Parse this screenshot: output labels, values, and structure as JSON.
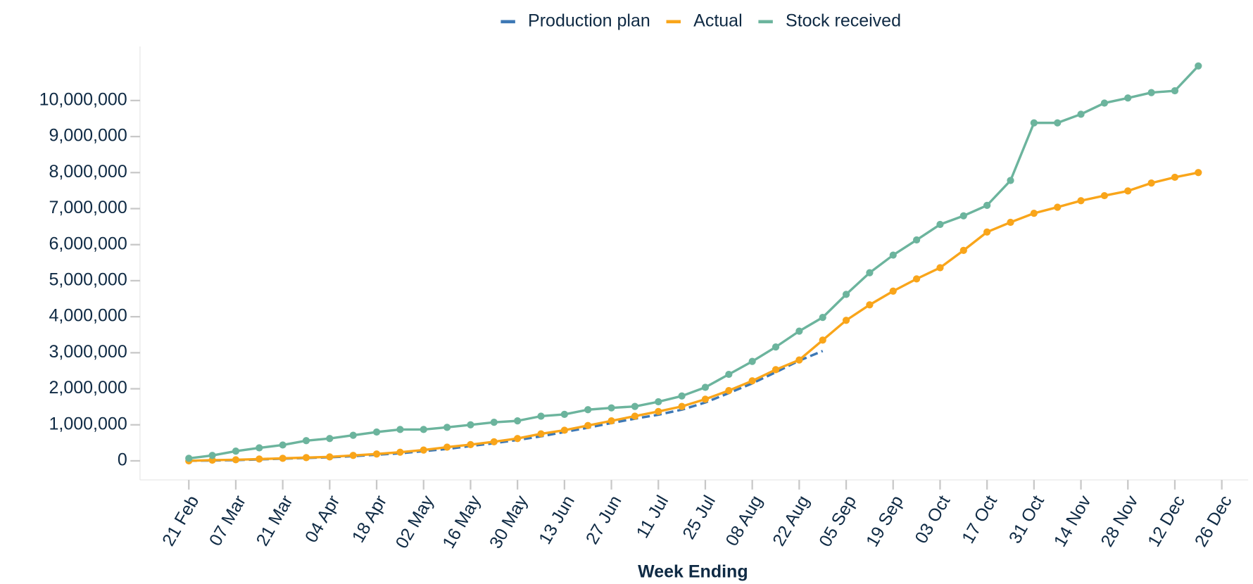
{
  "chart_data": {
    "type": "line",
    "x_label": "Week Ending",
    "categories": [
      "21 Feb",
      null,
      "07 Mar",
      null,
      "21 Mar",
      null,
      "04 Apr",
      null,
      "18 Apr",
      null,
      "02 May",
      null,
      "16 May",
      null,
      "30 May",
      null,
      "13 Jun",
      null,
      "27 Jun",
      null,
      "11 Jul",
      null,
      "25 Jul",
      null,
      "08 Aug",
      null,
      "22 Aug",
      null,
      "05 Sep",
      null,
      "19 Sep",
      null,
      "03 Oct",
      null,
      "17 Oct",
      null,
      "31 Oct",
      null,
      "14 Nov",
      null,
      "28 Nov",
      null,
      "12 Dec",
      null,
      "26 Dec"
    ],
    "series": [
      {
        "name": "Production plan",
        "color": "#3d78b5",
        "dashed": true,
        "markers": false,
        "values": [
          0,
          0.01,
          0.02,
          0.04,
          0.06,
          0.08,
          0.1,
          0.13,
          0.17,
          0.21,
          0.27,
          0.33,
          0.41,
          0.49,
          0.58,
          0.68,
          0.8,
          0.92,
          1.05,
          1.17,
          1.28,
          1.42,
          1.62,
          1.88,
          2.15,
          2.46,
          2.78,
          3.05,
          null,
          null,
          null,
          null,
          null,
          null,
          null,
          null,
          null,
          null,
          null,
          null,
          null,
          null,
          null,
          null,
          null
        ]
      },
      {
        "name": "Actual",
        "color": "#f9a51a",
        "dashed": false,
        "markers": true,
        "values": [
          0,
          0.02,
          0.03,
          0.05,
          0.07,
          0.09,
          0.11,
          0.15,
          0.19,
          0.24,
          0.3,
          0.38,
          0.45,
          0.53,
          0.62,
          0.75,
          0.85,
          0.98,
          1.11,
          1.24,
          1.37,
          1.51,
          1.71,
          1.95,
          2.22,
          2.53,
          2.8,
          3.35,
          3.9,
          4.33,
          4.71,
          5.05,
          5.36,
          5.84,
          6.35,
          6.62,
          6.87,
          7.04,
          7.22,
          7.36,
          7.49,
          7.71,
          7.87,
          8.0,
          null
        ]
      },
      {
        "name": "Stock received",
        "color": "#6cb49d",
        "dashed": false,
        "markers": true,
        "values": [
          0.07,
          0.15,
          0.27,
          0.36,
          0.44,
          0.56,
          0.62,
          0.71,
          0.8,
          0.87,
          0.87,
          0.93,
          1.0,
          1.07,
          1.11,
          1.24,
          1.29,
          1.42,
          1.47,
          1.51,
          1.64,
          1.8,
          2.04,
          2.4,
          2.76,
          3.16,
          3.6,
          3.98,
          4.62,
          5.22,
          5.71,
          6.13,
          6.56,
          6.8,
          7.09,
          7.78,
          9.38,
          9.38,
          9.62,
          9.93,
          10.07,
          10.22,
          10.27,
          10.96,
          null
        ]
      }
    ],
    "y_unit_multiplier": 1000000,
    "ylim": [
      -530000,
      11500000
    ],
    "yticks": [
      {
        "value": 0,
        "label": "0"
      },
      {
        "value": 1000000,
        "label": "1,000,000"
      },
      {
        "value": 2000000,
        "label": "2,000,000"
      },
      {
        "value": 3000000,
        "label": "3,000,000"
      },
      {
        "value": 4000000,
        "label": "4,000,000"
      },
      {
        "value": 5000000,
        "label": "5,000,000"
      },
      {
        "value": 6000000,
        "label": "6,000,000"
      },
      {
        "value": 7000000,
        "label": "7,000,000"
      },
      {
        "value": 8000000,
        "label": "8,000,000"
      },
      {
        "value": 9000000,
        "label": "9,000,000"
      },
      {
        "value": 10000000,
        "label": "10,000,000"
      }
    ],
    "grid": false,
    "legend": "top"
  }
}
